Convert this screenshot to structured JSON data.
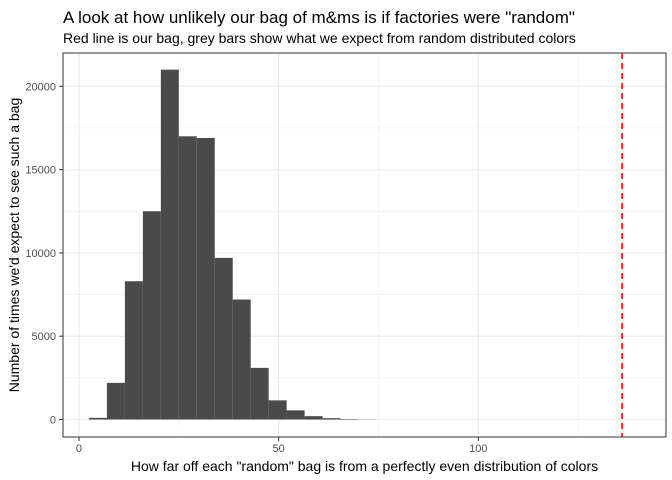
{
  "chart_data": {
    "type": "bar",
    "title": "A look at how unlikely our bag of m&ms is if factories were \"random\"",
    "subtitle": "Red line is our bag, grey bars show what we expect from random distributed colors",
    "xlabel": "How far off each \"random\" bag is from a perfectly even distribution of colors",
    "ylabel": "Number of times we'd expect to see such a bag",
    "xlim": [
      -4,
      147
    ],
    "ylim": [
      -1050,
      22000
    ],
    "x_ticks": [
      0,
      50,
      100
    ],
    "x_tick_labels": [
      "0",
      "50",
      "100"
    ],
    "y_ticks": [
      0,
      5000,
      10000,
      15000,
      20000
    ],
    "y_tick_labels": [
      "0",
      "5000",
      "10000",
      "15000",
      "20000"
    ],
    "bin_width": 4.5,
    "bins": [
      {
        "x0": 2.5,
        "x1": 7.0,
        "count": 100
      },
      {
        "x0": 7.0,
        "x1": 11.5,
        "count": 2200
      },
      {
        "x0": 11.5,
        "x1": 16.0,
        "count": 8300
      },
      {
        "x0": 16.0,
        "x1": 20.5,
        "count": 12500
      },
      {
        "x0": 20.5,
        "x1": 25.0,
        "count": 21000
      },
      {
        "x0": 25.0,
        "x1": 29.5,
        "count": 17000
      },
      {
        "x0": 29.5,
        "x1": 34.0,
        "count": 16900
      },
      {
        "x0": 34.0,
        "x1": 38.5,
        "count": 9700
      },
      {
        "x0": 38.5,
        "x1": 43.0,
        "count": 7200
      },
      {
        "x0": 43.0,
        "x1": 47.5,
        "count": 3100
      },
      {
        "x0": 47.5,
        "x1": 52.0,
        "count": 1150
      },
      {
        "x0": 52.0,
        "x1": 56.5,
        "count": 550
      },
      {
        "x0": 56.5,
        "x1": 61.0,
        "count": 200
      },
      {
        "x0": 61.0,
        "x1": 65.5,
        "count": 80
      },
      {
        "x0": 65.5,
        "x1": 70.0,
        "count": 30
      },
      {
        "x0": 70.0,
        "x1": 74.5,
        "count": 10
      }
    ],
    "reference_line": {
      "x": 136,
      "color": "#ff0000",
      "style": "dashed"
    },
    "bar_color": "#4a4a4a",
    "grid": true,
    "legend": "none",
    "theme": "bw"
  }
}
